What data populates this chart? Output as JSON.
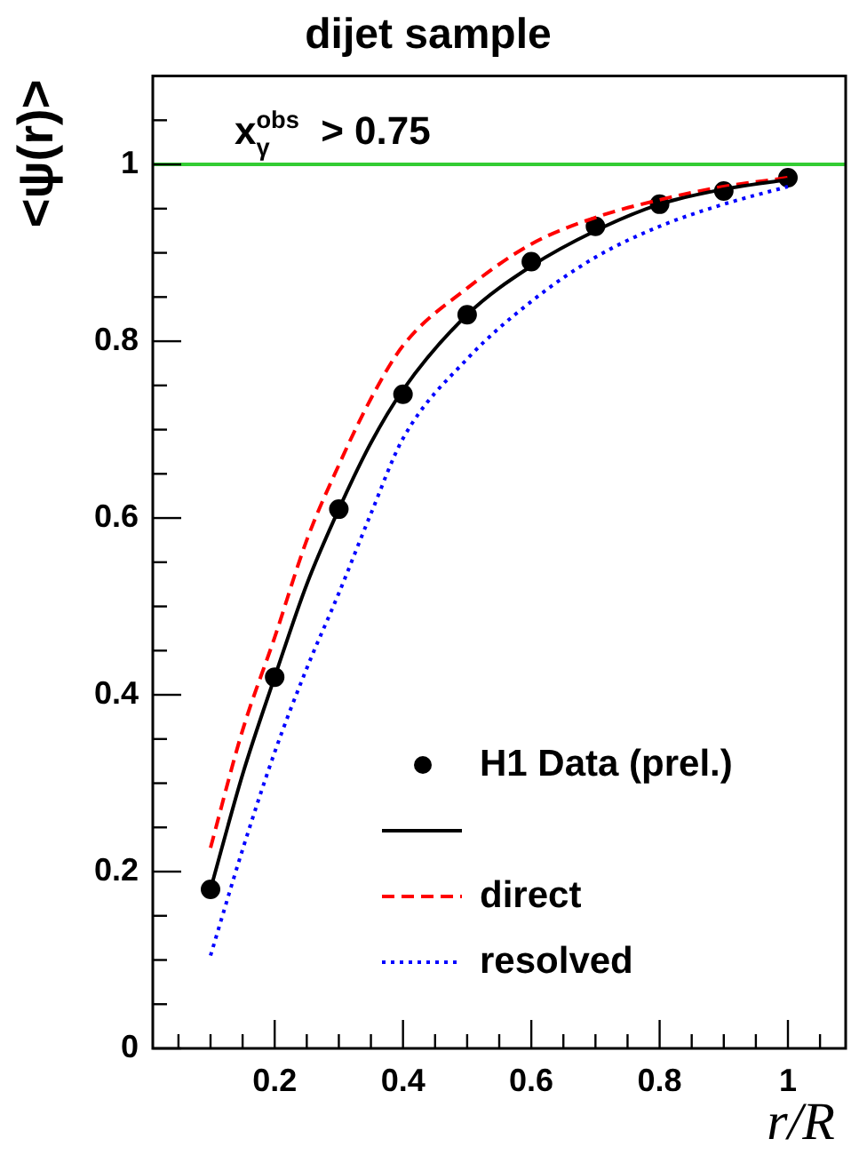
{
  "chart_data": {
    "type": "line",
    "title": "dijet sample",
    "xlabel": "r/R",
    "ylabel": "<ψ(r)>",
    "annotations": [
      "x$_{γ}$$^{obs}$ > 0.75"
    ],
    "xlim": [
      0.01,
      1.09
    ],
    "ylim": [
      0,
      1.1
    ],
    "xticks": [
      {
        "value": 0.05,
        "label": null
      },
      {
        "value": 0.1,
        "label": null
      },
      {
        "value": 0.15,
        "label": null
      },
      {
        "value": 0.2,
        "label": "0.2"
      },
      {
        "value": 0.25,
        "label": null
      },
      {
        "value": 0.3,
        "label": null
      },
      {
        "value": 0.35,
        "label": null
      },
      {
        "value": 0.4,
        "label": "0.4"
      },
      {
        "value": 0.45,
        "label": null
      },
      {
        "value": 0.5,
        "label": null
      },
      {
        "value": 0.55,
        "label": null
      },
      {
        "value": 0.6,
        "label": "0.6"
      },
      {
        "value": 0.65,
        "label": null
      },
      {
        "value": 0.7,
        "label": null
      },
      {
        "value": 0.75,
        "label": null
      },
      {
        "value": 0.8,
        "label": "0.8"
      },
      {
        "value": 0.85,
        "label": null
      },
      {
        "value": 0.9,
        "label": null
      },
      {
        "value": 0.95,
        "label": null
      },
      {
        "value": 1,
        "label": "1"
      },
      {
        "value": 1.05,
        "label": null
      }
    ],
    "yticks": [
      0,
      {
        "value": 0.05,
        "label": null
      },
      {
        "value": 0.1,
        "label": null
      },
      {
        "value": 0.15,
        "label": null
      },
      0.2,
      {
        "value": 0.25,
        "label": null
      },
      {
        "value": 0.3,
        "label": null
      },
      {
        "value": 0.35,
        "label": null
      },
      0.4,
      {
        "value": 0.45,
        "label": null
      },
      {
        "value": 0.5,
        "label": null
      },
      {
        "value": 0.55,
        "label": null
      },
      0.6,
      {
        "value": 0.65,
        "label": null
      },
      {
        "value": 0.7,
        "label": null
      },
      {
        "value": 0.75,
        "label": null
      },
      0.8,
      {
        "value": 0.85,
        "label": null
      },
      {
        "value": 0.9,
        "label": null
      },
      {
        "value": 0.95,
        "label": null
      },
      1,
      {
        "value": 1.05,
        "label": null
      }
    ],
    "ref_lines": [
      {
        "axis": "y",
        "value": 1,
        "color": "#33cc33",
        "line_style": "solid"
      }
    ],
    "legend": "bottom right",
    "series": [
      {
        "name": "H1 Data (prel.)",
        "type": "scatter",
        "marker": "circle",
        "color": "#000000",
        "x": [
          0.1,
          0.2,
          0.3,
          0.4,
          0.5,
          0.6,
          0.7,
          0.8,
          0.9,
          1
        ],
        "values": [
          0.18,
          0.42,
          0.61,
          0.74,
          0.83,
          0.89,
          0.93,
          0.955,
          0.97,
          0.985
        ]
      },
      {
        "type": "line",
        "line_style": "solid",
        "color": "#000000",
        "x": [
          0.1,
          0.15,
          0.2,
          0.25,
          0.3,
          0.35,
          0.4,
          0.5,
          0.6,
          0.7,
          0.8,
          0.9,
          1
        ],
        "values": [
          0.18,
          0.31,
          0.42,
          0.525,
          0.61,
          0.685,
          0.745,
          0.83,
          0.885,
          0.925,
          0.955,
          0.972,
          0.983
        ]
      },
      {
        "name": "direct",
        "type": "line",
        "line_style": "dashed",
        "color": "#ff0000",
        "x": [
          0.1,
          0.15,
          0.2,
          0.25,
          0.3,
          0.35,
          0.4,
          0.5,
          0.6,
          0.7,
          0.8,
          0.9,
          1
        ],
        "values": [
          0.227,
          0.36,
          0.465,
          0.575,
          0.66,
          0.735,
          0.795,
          0.86,
          0.91,
          0.94,
          0.96,
          0.975,
          0.985
        ]
      },
      {
        "name": "resolved",
        "type": "line",
        "line_style": "dotted",
        "color": "#0000ff",
        "x": [
          0.1,
          0.15,
          0.2,
          0.25,
          0.3,
          0.35,
          0.4,
          0.5,
          0.6,
          0.7,
          0.8,
          0.9,
          1
        ],
        "values": [
          0.105,
          0.225,
          0.335,
          0.43,
          0.515,
          0.605,
          0.69,
          0.78,
          0.845,
          0.895,
          0.93,
          0.955,
          0.975
        ]
      }
    ]
  }
}
